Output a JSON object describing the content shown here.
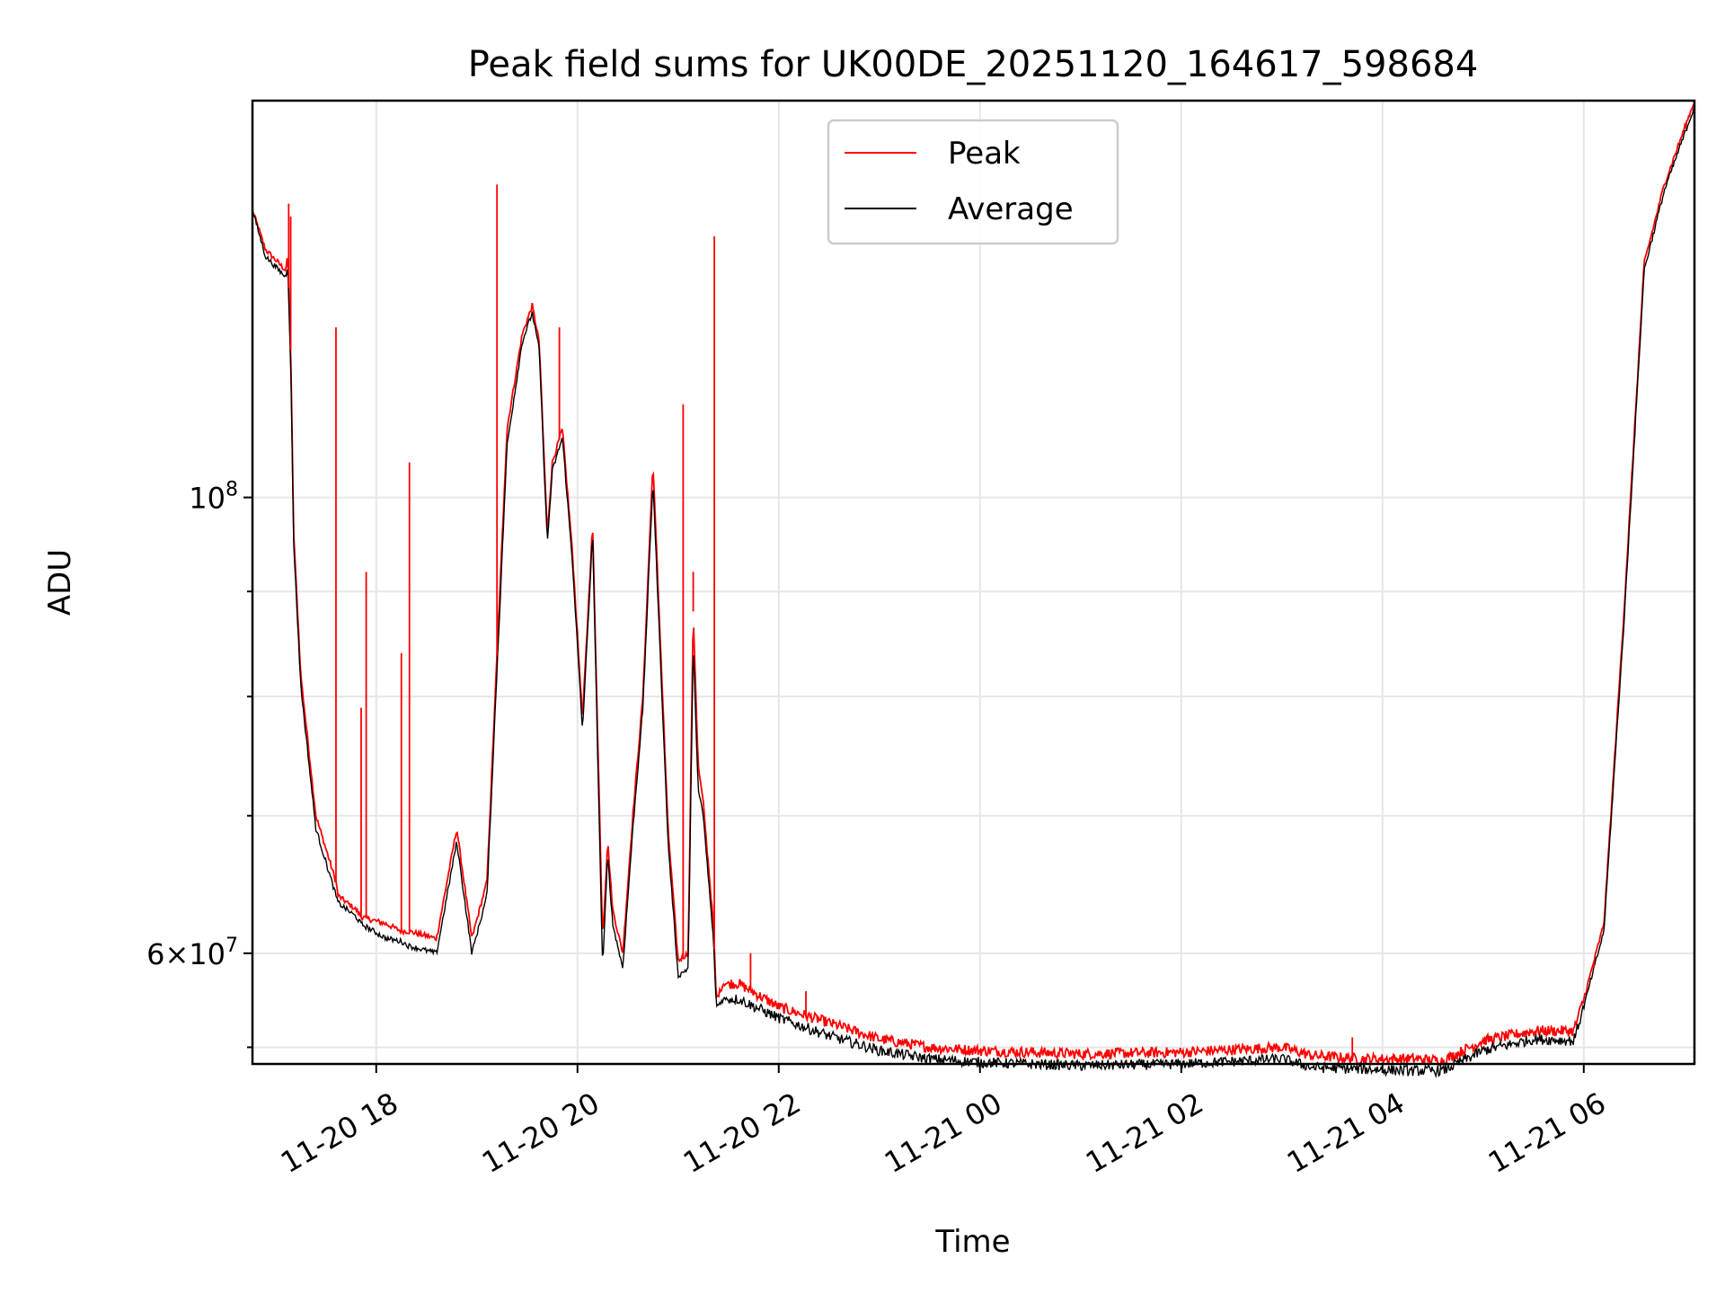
{
  "chart_data": {
    "type": "line",
    "title": "Peak field sums for UK00DE_20251120_164617_598684",
    "xlabel": "Time",
    "ylabel": "ADU",
    "x_units": "hours since 11-20 00:00",
    "xlim": [
      16.77,
      31.1
    ],
    "ylim": [
      53000000,
      156000000
    ],
    "yscale": "log",
    "grid": true,
    "legend_position": "upper-center",
    "x_ticks": [
      {
        "value": 18,
        "label": "11-20 18"
      },
      {
        "value": 20,
        "label": "11-20 20"
      },
      {
        "value": 22,
        "label": "11-20 22"
      },
      {
        "value": 24,
        "label": "11-21 00"
      },
      {
        "value": 26,
        "label": "11-21 02"
      },
      {
        "value": 28,
        "label": "11-21 04"
      },
      {
        "value": 30,
        "label": "11-21 06"
      }
    ],
    "y_ticks": [
      {
        "value": 100000000,
        "base": "10",
        "exp": "8",
        "mant": ""
      },
      {
        "value": 60000000,
        "base": "10",
        "exp": "7",
        "mant": "6"
      }
    ],
    "y_minor_ticks": [
      54000000,
      70000000,
      80000000,
      90000000
    ],
    "series": [
      {
        "name": "Peak",
        "color": "#ff0000",
        "x": [
          16.77,
          16.9,
          17.1,
          17.12,
          17.15,
          17.18,
          17.25,
          17.4,
          17.6,
          17.62,
          17.8,
          17.85,
          18.1,
          18.25,
          18.32,
          18.6,
          18.8,
          18.95,
          19.1,
          19.3,
          19.45,
          19.55,
          19.62,
          19.7,
          19.75,
          19.85,
          19.95,
          20.05,
          20.15,
          20.25,
          20.3,
          20.35,
          20.45,
          20.55,
          20.65,
          20.75,
          20.9,
          21.0,
          21.1,
          21.15,
          21.2,
          21.25,
          21.35,
          21.38,
          21.45,
          21.6,
          22.0,
          22.5,
          23.0,
          23.5,
          24.0,
          25.0,
          26.0,
          27.0,
          27.3,
          27.8,
          28.3,
          28.6,
          29.0,
          29.5,
          29.9,
          30.0,
          30.2,
          30.4,
          30.6,
          30.8,
          31.1
        ],
        "y": [
          138000000,
          132000000,
          129000000,
          131000000,
          118000000,
          96000000,
          82000000,
          70000000,
          65000000,
          64000000,
          63000000,
          62500000,
          62000000,
          61500000,
          61500000,
          61000000,
          69000000,
          61000000,
          65000000,
          108000000,
          120000000,
          124000000,
          119000000,
          96000000,
          104000000,
          108000000,
          94000000,
          78000000,
          97000000,
          61000000,
          68000000,
          63000000,
          60000000,
          70000000,
          80000000,
          104000000,
          69000000,
          59500000,
          60000000,
          88000000,
          74000000,
          71000000,
          62000000,
          57000000,
          58000000,
          58000000,
          56500000,
          55500000,
          54500000,
          54000000,
          53800000,
          53600000,
          53700000,
          54000000,
          53500000,
          53300000,
          53300000,
          53200000,
          54400000,
          55000000,
          55000000,
          57000000,
          62000000,
          88000000,
          130000000,
          142000000,
          156000000
        ]
      },
      {
        "name": "Average",
        "color": "#000000",
        "x": [
          16.77,
          16.9,
          17.1,
          17.12,
          17.15,
          17.18,
          17.25,
          17.4,
          17.6,
          17.62,
          17.8,
          17.85,
          18.1,
          18.25,
          18.32,
          18.6,
          18.8,
          18.95,
          19.1,
          19.3,
          19.45,
          19.55,
          19.62,
          19.7,
          19.75,
          19.85,
          19.95,
          20.05,
          20.15,
          20.25,
          20.3,
          20.35,
          20.45,
          20.55,
          20.65,
          20.75,
          20.9,
          21.0,
          21.1,
          21.15,
          21.2,
          21.25,
          21.35,
          21.38,
          21.45,
          21.6,
          22.0,
          22.5,
          23.0,
          23.5,
          24.0,
          25.0,
          26.0,
          27.0,
          27.3,
          27.8,
          28.3,
          28.6,
          29.0,
          29.5,
          29.9,
          30.0,
          30.2,
          30.4,
          30.6,
          30.8,
          31.1
        ],
        "y": [
          138000000,
          131000000,
          128000000,
          130000000,
          116000000,
          95000000,
          81000000,
          69000000,
          64000000,
          63500000,
          62500000,
          62000000,
          61000000,
          60800000,
          60500000,
          60000000,
          68000000,
          60000000,
          64000000,
          106000000,
          119000000,
          123000000,
          118000000,
          95000000,
          103000000,
          107000000,
          93000000,
          77000000,
          96000000,
          59000000,
          67000000,
          62000000,
          59000000,
          69000000,
          79000000,
          102000000,
          68000000,
          58500000,
          59000000,
          85000000,
          72000000,
          70000000,
          61000000,
          56500000,
          57000000,
          57000000,
          55800000,
          54700000,
          53800000,
          53300000,
          53100000,
          52900000,
          53000000,
          53300000,
          52800000,
          52700000,
          52600000,
          52600000,
          53800000,
          54500000,
          54400000,
          56500000,
          61500000,
          87000000,
          129000000,
          141000000,
          155000000
        ]
      }
    ],
    "spikes": [
      {
        "x": 17.13,
        "y": 139000000
      },
      {
        "x": 17.15,
        "y": 137000000
      },
      {
        "x": 17.6,
        "y": 121000000
      },
      {
        "x": 17.85,
        "y": 79000000
      },
      {
        "x": 17.9,
        "y": 92000000
      },
      {
        "x": 18.25,
        "y": 84000000
      },
      {
        "x": 18.33,
        "y": 104000000
      },
      {
        "x": 19.2,
        "y": 142000000
      },
      {
        "x": 19.82,
        "y": 121000000
      },
      {
        "x": 21.05,
        "y": 111000000
      },
      {
        "x": 21.15,
        "y": 92000000
      },
      {
        "x": 21.36,
        "y": 134000000
      },
      {
        "x": 21.72,
        "y": 60000000
      },
      {
        "x": 22.27,
        "y": 57500000
      },
      {
        "x": 27.7,
        "y": 54600000
      },
      {
        "x": 30.1,
        "y": 59000000
      }
    ]
  },
  "legend": {
    "peak_label": "Peak",
    "average_label": "Average"
  }
}
